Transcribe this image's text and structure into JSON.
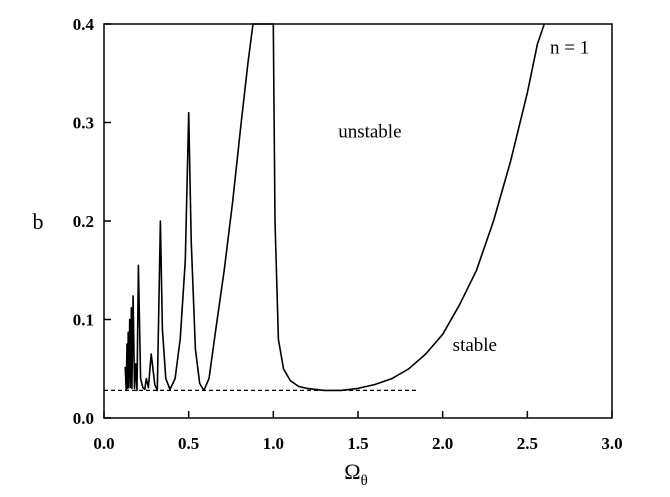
{
  "chart_data": {
    "type": "line",
    "title": "",
    "xlabel": "Ω",
    "xlabel_subscript": "θ",
    "ylabel": "b",
    "xlim": [
      0.0,
      3.0
    ],
    "ylim": [
      0.0,
      0.4
    ],
    "x_ticks": [
      0.0,
      0.5,
      1.0,
      1.5,
      2.0,
      2.5,
      3.0
    ],
    "x_tick_labels": [
      "0.0",
      "0.5",
      "1.0",
      "1.5",
      "2.0",
      "2.5",
      "3.0"
    ],
    "y_ticks": [
      0.0,
      0.1,
      0.2,
      0.3,
      0.4
    ],
    "y_tick_labels": [
      "0.0",
      "0.1",
      "0.2",
      "0.3",
      "0.4"
    ],
    "grid": false,
    "legend": "none",
    "annotations": [
      {
        "text": "n = 1",
        "x": 2.75,
        "y": 0.37
      },
      {
        "text": "unstable",
        "x": 1.57,
        "y": 0.285
      },
      {
        "text": "stable",
        "x": 2.19,
        "y": 0.068
      }
    ],
    "series": [
      {
        "style": "solid",
        "color": "#000000",
        "x": [
          0.125,
          0.131,
          0.136,
          0.14,
          0.143,
          0.147,
          0.152,
          0.158,
          0.161,
          0.165,
          0.172,
          0.18,
          0.187,
          0.195,
          0.203,
          0.216,
          0.229,
          0.241,
          0.25,
          0.262,
          0.279,
          0.3,
          0.315,
          0.333,
          0.345,
          0.365,
          0.39,
          0.42,
          0.45,
          0.48,
          0.5,
          0.515,
          0.54,
          0.565,
          0.59,
          0.62,
          0.66,
          0.71,
          0.76,
          0.81,
          0.85,
          0.88,
          0.89,
          1.0,
          1.01,
          1.03,
          1.06,
          1.1,
          1.15,
          1.2,
          1.25,
          1.3,
          1.35,
          1.4,
          1.45,
          1.5,
          1.6,
          1.7,
          1.8,
          1.9,
          2.0,
          2.1,
          2.2,
          2.3,
          2.4,
          2.5,
          2.56,
          2.6
        ],
        "y": [
          0.052,
          0.028,
          0.075,
          0.03,
          0.087,
          0.031,
          0.1,
          0.031,
          0.112,
          0.03,
          0.124,
          0.03,
          0.055,
          0.028,
          0.155,
          0.04,
          0.031,
          0.029,
          0.04,
          0.031,
          0.065,
          0.034,
          0.028,
          0.2,
          0.09,
          0.04,
          0.029,
          0.04,
          0.08,
          0.16,
          0.31,
          0.18,
          0.07,
          0.035,
          0.028,
          0.04,
          0.09,
          0.15,
          0.22,
          0.3,
          0.36,
          0.4,
          0.4,
          0.4,
          0.2,
          0.08,
          0.05,
          0.038,
          0.032,
          0.03,
          0.029,
          0.028,
          0.028,
          0.028,
          0.029,
          0.03,
          0.034,
          0.04,
          0.05,
          0.065,
          0.085,
          0.115,
          0.15,
          0.2,
          0.26,
          0.33,
          0.38,
          0.4
        ]
      },
      {
        "style": "dashed",
        "color": "#000000",
        "x": [
          0.0,
          1.85
        ],
        "y": [
          0.028,
          0.028
        ]
      }
    ]
  }
}
